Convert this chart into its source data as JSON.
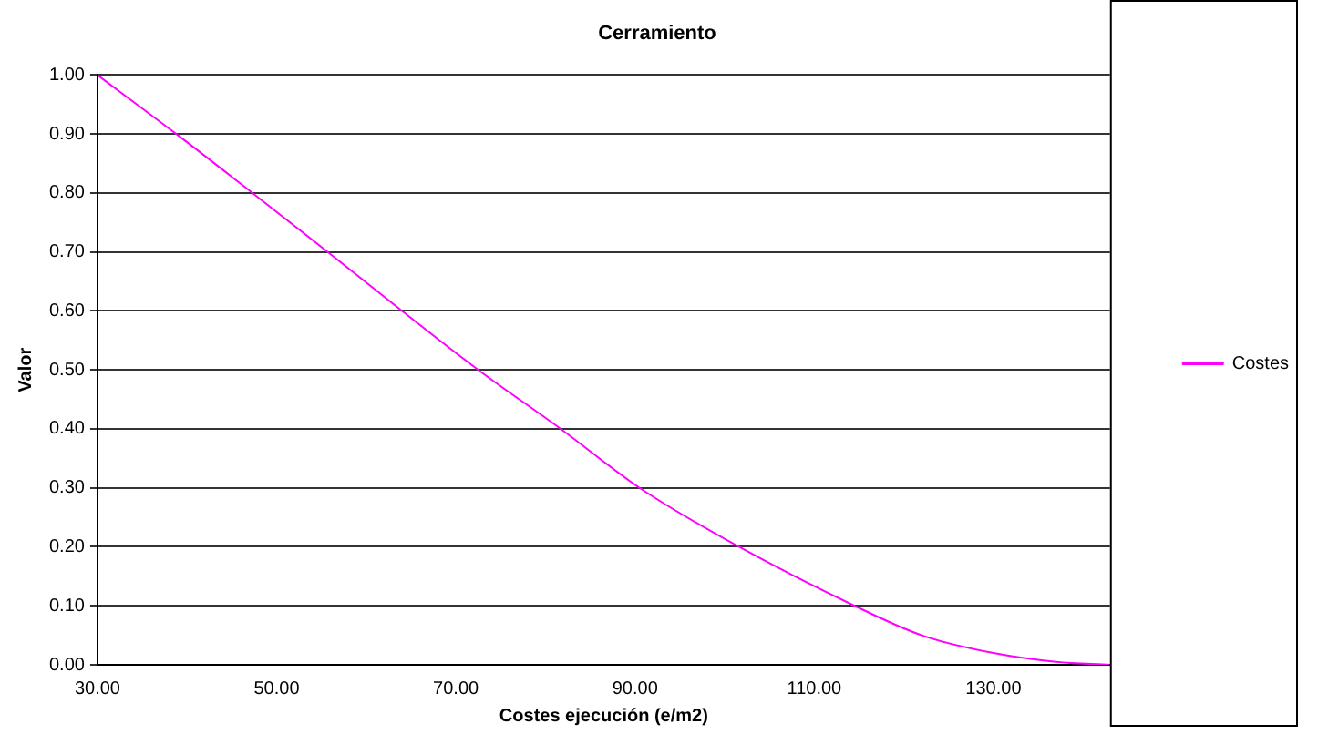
{
  "chart_data": {
    "type": "line",
    "title": "Cerramiento",
    "xlabel": "Costes ejecución (e/m2)",
    "ylabel": "Valor",
    "series": [
      {
        "name": "Costes",
        "color": "#ff00ff",
        "x": [
          30,
          38.8,
          47.3,
          55.7,
          64,
          72.5,
          81.7,
          90.5,
          101.6,
          114.5,
          122,
          130,
          137,
          143
        ],
        "values": [
          1,
          0.9,
          0.8,
          0.7,
          0.6,
          0.5,
          0.4,
          0.3,
          0.2,
          0.1,
          0.05,
          0.02,
          0.005,
          0
        ]
      }
    ],
    "xlim": [
      30,
      143
    ],
    "xticks": [
      {
        "value": 30,
        "label": "30.00"
      },
      {
        "value": 50,
        "label": "50.00"
      },
      {
        "value": 70,
        "label": "70.00"
      },
      {
        "value": 90,
        "label": "90.00"
      },
      {
        "value": 110,
        "label": "110.00"
      },
      {
        "value": 130,
        "label": "130.00"
      }
    ],
    "ylim": [
      0,
      1
    ],
    "yticks": [
      {
        "value": 0,
        "label": "0.00"
      },
      {
        "value": 0.1,
        "label": "0.10"
      },
      {
        "value": 0.2,
        "label": "0.20"
      },
      {
        "value": 0.3,
        "label": "0.30"
      },
      {
        "value": 0.4,
        "label": "0.40"
      },
      {
        "value": 0.5,
        "label": "0.50"
      },
      {
        "value": 0.6,
        "label": "0.60"
      },
      {
        "value": 0.7,
        "label": "0.70"
      },
      {
        "value": 0.8,
        "label": "0.80"
      },
      {
        "value": 0.9,
        "label": "0.90"
      },
      {
        "value": 1,
        "label": "1.00"
      }
    ],
    "grid": "y",
    "legend": "right",
    "marker": "none",
    "line_style": "solid"
  }
}
